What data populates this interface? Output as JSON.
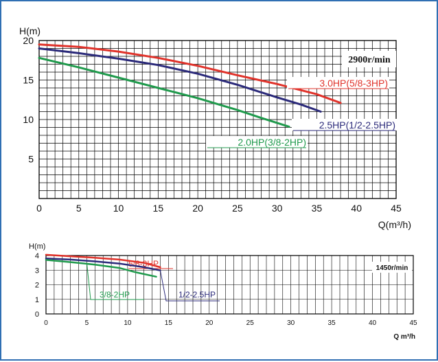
{
  "chart_data": [
    {
      "type": "line",
      "xlabel": "Q(m³/h)",
      "ylabel": "H(m)",
      "xlim": [
        0,
        45
      ],
      "ylim": [
        0,
        20
      ],
      "xticks": [
        "0",
        "5",
        "10",
        "15",
        "20",
        "25",
        "30",
        "35",
        "40",
        "45"
      ],
      "yticks": [
        "5",
        "10",
        "15",
        "20"
      ],
      "grid": true,
      "annotation": "2900r/min",
      "series": [
        {
          "name": "3.0HP(5/8-3HP)",
          "color": "#e0322a",
          "points": [
            [
              0,
              19.5
            ],
            [
              5,
              19.2
            ],
            [
              10,
              18.6
            ],
            [
              15,
              17.8
            ],
            [
              20,
              16.8
            ],
            [
              25,
              15.6
            ],
            [
              30,
              14.5
            ],
            [
              35,
              13.2
            ],
            [
              38,
              12.1
            ]
          ]
        },
        {
          "name": "2.5HP(1/2-2.5HP)",
          "color": "#2b2a7a",
          "points": [
            [
              0,
              19.0
            ],
            [
              5,
              18.4
            ],
            [
              10,
              17.7
            ],
            [
              15,
              16.9
            ],
            [
              20,
              15.8
            ],
            [
              25,
              14.4
            ],
            [
              30,
              12.8
            ],
            [
              33,
              11.9
            ],
            [
              35.5,
              11.0
            ]
          ]
        },
        {
          "name": "2.0HP(3/8-2HP)",
          "color": "#1f9a4c",
          "points": [
            [
              0,
              17.8
            ],
            [
              5,
              16.6
            ],
            [
              10,
              15.3
            ],
            [
              15,
              14.0
            ],
            [
              20,
              12.7
            ],
            [
              25,
              11.2
            ],
            [
              28,
              10.2
            ],
            [
              31.5,
              9.1
            ]
          ]
        }
      ]
    },
    {
      "type": "line",
      "xlabel": "Q m³/h",
      "ylabel": "H(m)",
      "xlim": [
        0,
        45
      ],
      "ylim": [
        0,
        4
      ],
      "xticks": [
        "0",
        "5",
        "10",
        "15",
        "20",
        "25",
        "30",
        "35",
        "40",
        "45"
      ],
      "yticks": [
        "0",
        "1",
        "2",
        "3",
        "4"
      ],
      "grid": true,
      "annotation": "1450r/min",
      "series": [
        {
          "name": "5/8-3HP",
          "color": "#e0322a",
          "points": [
            [
              0,
              4.05
            ],
            [
              3,
              3.95
            ],
            [
              6,
              3.85
            ],
            [
              9,
              3.72
            ],
            [
              12,
              3.5
            ],
            [
              14,
              3.2
            ]
          ]
        },
        {
          "name": "1/2-2.5HP",
          "color": "#2b2a7a",
          "points": [
            [
              0,
              3.8
            ],
            [
              3,
              3.72
            ],
            [
              6,
              3.6
            ],
            [
              9,
              3.45
            ],
            [
              12,
              3.2
            ],
            [
              14,
              2.98
            ]
          ]
        },
        {
          "name": "3/8-2HP",
          "color": "#1f9a4c",
          "points": [
            [
              0,
              3.7
            ],
            [
              3,
              3.55
            ],
            [
              6,
              3.38
            ],
            [
              9,
              3.15
            ],
            [
              11,
              2.85
            ],
            [
              13.5,
              2.55
            ]
          ]
        }
      ]
    }
  ]
}
